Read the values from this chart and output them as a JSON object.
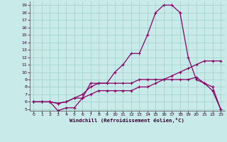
{
  "xlabel": "Windchill (Refroidissement éolien,°C)",
  "xlim": [
    0,
    23
  ],
  "ylim": [
    5,
    19
  ],
  "xticks": [
    0,
    1,
    2,
    3,
    4,
    5,
    6,
    7,
    8,
    9,
    10,
    11,
    12,
    13,
    14,
    15,
    16,
    17,
    18,
    19,
    20,
    21,
    22,
    23
  ],
  "yticks": [
    5,
    6,
    7,
    8,
    9,
    10,
    11,
    12,
    13,
    14,
    15,
    16,
    17,
    18,
    19
  ],
  "background_color": "#c8eae8",
  "grid_color": "#a0d0cc",
  "line_color": "#880066",
  "line1_x": [
    0,
    1,
    2,
    3,
    4,
    5,
    6,
    7,
    8,
    9,
    10,
    11,
    12,
    13,
    14,
    15,
    16,
    17,
    18,
    19,
    20,
    21,
    22,
    23
  ],
  "line1_y": [
    6,
    6,
    6,
    4.8,
    5.2,
    5.2,
    6.5,
    8.5,
    8.5,
    8.5,
    10,
    11,
    12.5,
    12.5,
    15,
    18,
    19,
    19,
    18,
    12,
    9,
    8.5,
    7.5,
    5
  ],
  "line2_x": [
    0,
    1,
    2,
    3,
    4,
    5,
    6,
    7,
    8,
    9,
    10,
    11,
    12,
    13,
    14,
    15,
    16,
    17,
    18,
    19,
    20,
    21,
    22,
    23
  ],
  "line2_y": [
    6,
    6,
    6,
    5.8,
    6,
    6.5,
    7,
    8,
    8.5,
    8.5,
    8.5,
    8.5,
    8.5,
    9,
    9,
    9,
    9,
    9,
    9,
    9,
    9.3,
    8.5,
    8,
    5
  ],
  "line3_x": [
    0,
    1,
    2,
    3,
    4,
    5,
    6,
    7,
    8,
    9,
    10,
    11,
    12,
    13,
    14,
    15,
    16,
    17,
    18,
    19,
    20,
    21,
    22,
    23
  ],
  "line3_y": [
    6,
    6,
    6,
    5.8,
    6,
    6.5,
    6.5,
    7,
    7.5,
    7.5,
    7.5,
    7.5,
    7.5,
    8,
    8,
    8.5,
    9,
    9.5,
    10,
    10.5,
    11,
    11.5,
    11.5,
    11.5
  ]
}
